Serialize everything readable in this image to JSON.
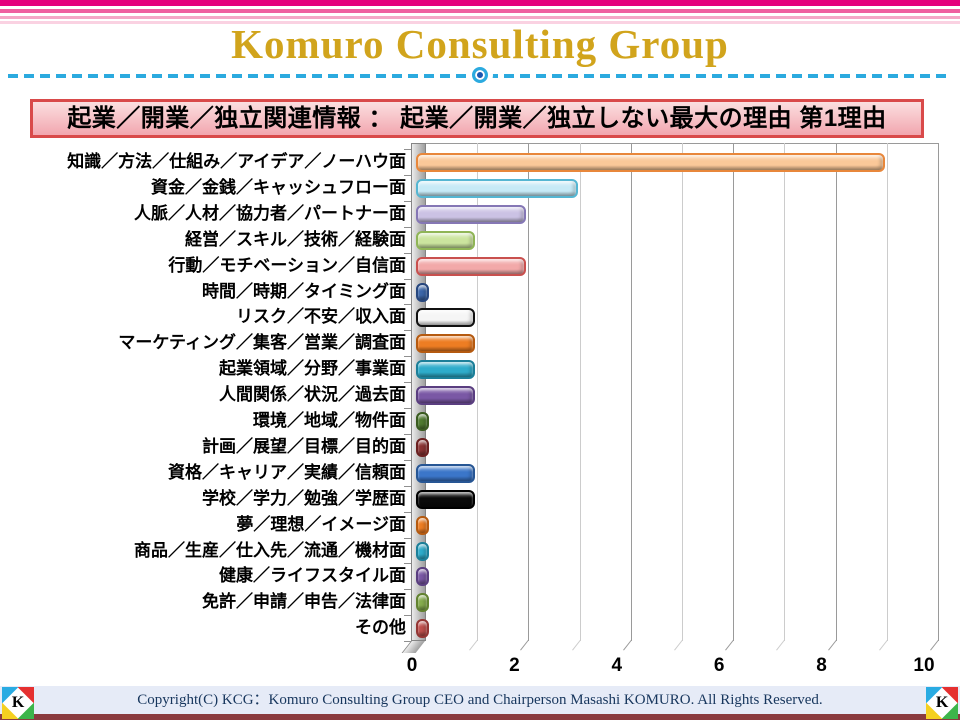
{
  "slide": {
    "header": {
      "stripe_colors": [
        "#E5007D",
        "#EF5FA0",
        "#F4A6C6",
        "#FAD2E2"
      ],
      "title": "Komuro Consulting Group",
      "title_color": "#D1A41C",
      "divider_color": "#2BAADF",
      "emblem_icon": "target-circle-icon",
      "banner": {
        "text": "起業／開業／独立関連情報 ： 起業／開業／独立しない最大の理由 第1理由",
        "border_color": "#D94A4A",
        "bg_top": "#FBDFE0",
        "bg_bottom": "#F2A6AF",
        "text_color": "#000000"
      }
    },
    "footer": {
      "text": "Copyright(C) KCG：Komuro Consulting Group CEO and Chairperson Masashi KOMURO. All Rights Reserved.",
      "bg_color": "#E6EBF7",
      "text_color": "#17365D",
      "bottom_strip_color": "#8A3A3E",
      "logo": {
        "letter": "K",
        "quad_top_left": "#29ABE2",
        "quad_top_right": "#E53030",
        "quad_bottom_left": "#F5D020",
        "quad_bottom_right": "#3CB54A"
      }
    }
  },
  "chart_data": {
    "type": "bar",
    "orientation": "horizontal",
    "style": "3d-rounded",
    "title": "起業／開業／独立しない最大の理由 第1理由",
    "xlabel": "",
    "ylabel": "",
    "legend": "none",
    "x_axis": {
      "min": 0,
      "max": 10,
      "major_unit": 2,
      "minor_unit": 1,
      "tick_labels": [
        "0",
        "2",
        "4",
        "6",
        "8",
        "10"
      ],
      "gridlines": true
    },
    "categories": [
      "知識／方法／仕組み／アイデア／ノーハウ面",
      "資金／金銭／キャッシュフロー面",
      "人脈／人材／協力者／パートナー面",
      "経営／スキル／技術／経験面",
      "行動／モチベーション／自信面",
      "時間／時期／タイミング面",
      "リスク／不安／収入面",
      "マーケティング／集客／営業／調査面",
      "起業領域／分野／事業面",
      "人間関係／状況／過去面",
      "環境／地域／物件面",
      "計画／展望／目標／目的面",
      "資格／キャリア／実績／信頼面",
      "学校／学力／勉強／学歴面",
      "夢／理想／イメージ面",
      "商品／生産／仕入先／流通／機材面",
      "健康／ライフスタイル面",
      "免許／申請／申告／法律面",
      "その他"
    ],
    "values": [
      9,
      3,
      2,
      1,
      2,
      0.1,
      1,
      1,
      1,
      1,
      0.1,
      0.1,
      1,
      1,
      0.1,
      0.1,
      0.1,
      0.1,
      0.1
    ],
    "bar_colors": [
      {
        "fill": "#FAC899",
        "border": "#E8873B"
      },
      {
        "fill": "#C7EAF6",
        "border": "#55B6D2"
      },
      {
        "fill": "#CBC2E4",
        "border": "#8577B5"
      },
      {
        "fill": "#CBE49E",
        "border": "#8FB556"
      },
      {
        "fill": "#F2A9A9",
        "border": "#C9504E"
      },
      {
        "fill": "#3B66A9",
        "border": "#27477E"
      },
      {
        "fill": "#F5F5F5",
        "border": "#111111"
      },
      {
        "fill": "#ED7D23",
        "border": "#B55A10"
      },
      {
        "fill": "#2EACCB",
        "border": "#1C7F99"
      },
      {
        "fill": "#7A58A5",
        "border": "#5A3E80"
      },
      {
        "fill": "#4F7B2F",
        "border": "#3A5B20"
      },
      {
        "fill": "#8B3333",
        "border": "#6B2020"
      },
      {
        "fill": "#3B76C9",
        "border": "#275694"
      },
      {
        "fill": "#0A0A0A",
        "border": "#000000"
      },
      {
        "fill": "#ED7D23",
        "border": "#B55A10"
      },
      {
        "fill": "#2EACCB",
        "border": "#1C7F99"
      },
      {
        "fill": "#7A58A5",
        "border": "#5A3E80"
      },
      {
        "fill": "#86AC4E",
        "border": "#628230"
      },
      {
        "fill": "#C0504D",
        "border": "#943634"
      }
    ]
  }
}
